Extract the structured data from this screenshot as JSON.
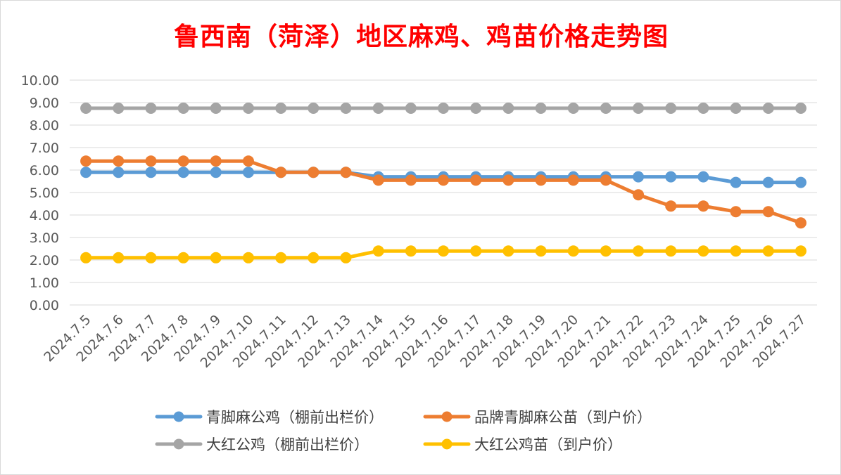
{
  "chart_data": {
    "type": "line",
    "title": "鲁西南（菏泽）地区麻鸡、鸡苗价格走势图",
    "xlabel": "",
    "ylabel": "",
    "ylim": [
      0,
      10
    ],
    "y_ticks": [
      "0.00",
      "1.00",
      "2.00",
      "3.00",
      "4.00",
      "5.00",
      "6.00",
      "7.00",
      "8.00",
      "9.00",
      "10.00"
    ],
    "grid": true,
    "legend_position": "bottom",
    "categories": [
      "2024.7.5",
      "2024.7.6",
      "2024.7.7",
      "2024.7.8",
      "2024.7.9",
      "2024.7.10",
      "2024.7.11",
      "2024.7.12",
      "2024.7.13",
      "2024.7.14",
      "2024.7.15",
      "2024.7.16",
      "2024.7.17",
      "2024.7.18",
      "2024.7.19",
      "2024.7.20",
      "2024.7.21",
      "2024.7.22",
      "2024.7.23",
      "2024.7.24",
      "2024.7.25",
      "2024.7.26",
      "2024.7.27"
    ],
    "series": [
      {
        "name": "青脚麻公鸡（棚前出栏价）",
        "color": "#5b9bd5",
        "values": [
          5.9,
          5.9,
          5.9,
          5.9,
          5.9,
          5.9,
          5.9,
          5.9,
          5.9,
          5.7,
          5.7,
          5.7,
          5.7,
          5.7,
          5.7,
          5.7,
          5.7,
          5.7,
          5.7,
          5.7,
          5.45,
          5.45,
          5.45
        ]
      },
      {
        "name": "品牌青脚麻公苗（到户价）",
        "color": "#ed7d31",
        "values": [
          6.4,
          6.4,
          6.4,
          6.4,
          6.4,
          6.4,
          5.9,
          5.9,
          5.9,
          5.55,
          5.55,
          5.55,
          5.55,
          5.55,
          5.55,
          5.55,
          5.55,
          4.9,
          4.4,
          4.4,
          4.15,
          4.15,
          3.65
        ]
      },
      {
        "name": "大红公鸡（棚前出栏价）",
        "color": "#a5a5a5",
        "values": [
          8.75,
          8.75,
          8.75,
          8.75,
          8.75,
          8.75,
          8.75,
          8.75,
          8.75,
          8.75,
          8.75,
          8.75,
          8.75,
          8.75,
          8.75,
          8.75,
          8.75,
          8.75,
          8.75,
          8.75,
          8.75,
          8.75,
          8.75
        ]
      },
      {
        "name": "大红公鸡苗（到户价）",
        "color": "#ffc000",
        "values": [
          2.1,
          2.1,
          2.1,
          2.1,
          2.1,
          2.1,
          2.1,
          2.1,
          2.1,
          2.4,
          2.4,
          2.4,
          2.4,
          2.4,
          2.4,
          2.4,
          2.4,
          2.4,
          2.4,
          2.4,
          2.4,
          2.4,
          2.4
        ]
      }
    ]
  },
  "colors": {
    "title": "#ff0000",
    "gridline": "#d9d9d9",
    "axis_text": "#595959",
    "legend_text": "#404040"
  }
}
